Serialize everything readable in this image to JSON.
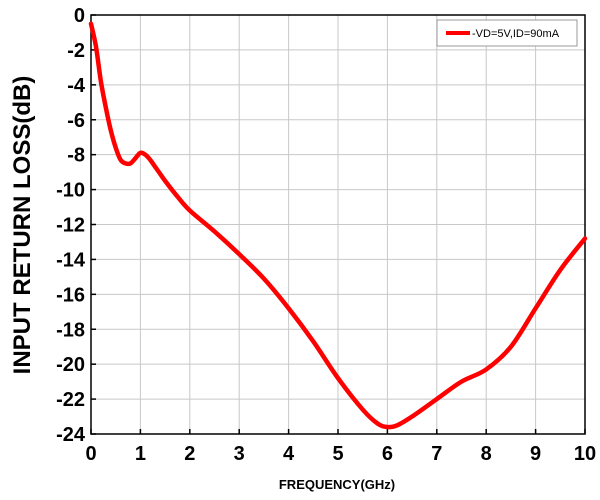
{
  "chart_data": {
    "type": "line",
    "title": "",
    "xlabel": "FREQUENCY(GHz)",
    "ylabel": "INPUT RETURN LOSS(dB)",
    "xlim": [
      0,
      10
    ],
    "ylim": [
      -24,
      0
    ],
    "xticks": [
      0,
      1,
      2,
      3,
      4,
      5,
      6,
      7,
      8,
      9,
      10
    ],
    "yticks": [
      0,
      -2,
      -4,
      -6,
      -8,
      -10,
      -12,
      -14,
      -16,
      -18,
      -20,
      -22,
      -24
    ],
    "xtick_labels": [
      "0",
      "1",
      "2",
      "3",
      "4",
      "5",
      "6",
      "7",
      "8",
      "9",
      "10"
    ],
    "ytick_labels": [
      "0",
      "-2",
      "-4",
      "-6",
      "-8",
      "-10",
      "-12",
      "-14",
      "-16",
      "-18",
      "-20",
      "-22",
      "-24"
    ],
    "grid": true,
    "legend_position": "top-right",
    "series": [
      {
        "name": "-VD=5V,ID=90mA",
        "color": "#ff0000",
        "x": [
          0,
          0.1,
          0.2,
          0.3,
          0.4,
          0.5,
          0.6,
          0.7,
          0.8,
          0.9,
          1.0,
          1.1,
          1.2,
          1.3,
          1.4,
          1.5,
          1.75,
          2.0,
          2.5,
          3.0,
          3.5,
          4.0,
          4.5,
          5.0,
          5.5,
          5.8,
          6.0,
          6.2,
          6.5,
          7.0,
          7.5,
          8.0,
          8.5,
          9.0,
          9.5,
          10.0
        ],
        "y": [
          -0.5,
          -1.8,
          -3.8,
          -5.3,
          -6.6,
          -7.6,
          -8.3,
          -8.5,
          -8.5,
          -8.2,
          -7.9,
          -8.0,
          -8.3,
          -8.7,
          -9.1,
          -9.5,
          -10.4,
          -11.2,
          -12.4,
          -13.7,
          -15.1,
          -16.8,
          -18.7,
          -20.8,
          -22.6,
          -23.4,
          -23.6,
          -23.5,
          -23.0,
          -22.0,
          -21.0,
          -20.3,
          -19.0,
          -16.8,
          -14.6,
          -12.8
        ]
      }
    ]
  }
}
